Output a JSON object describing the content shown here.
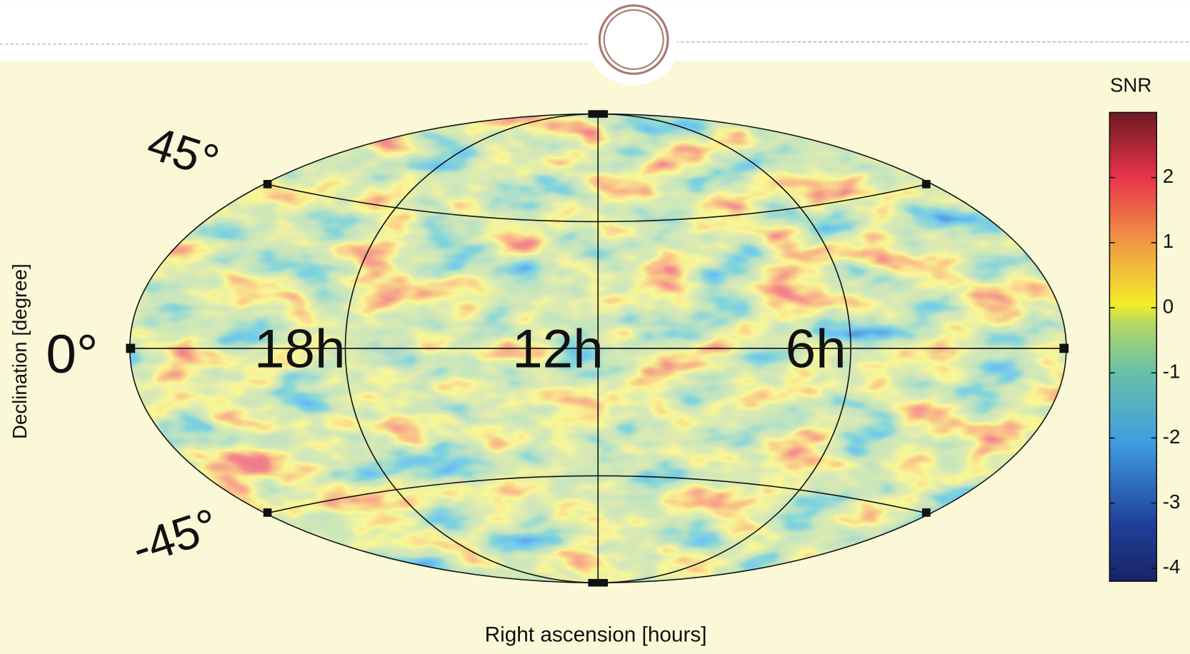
{
  "chart_data": {
    "type": "skymap",
    "x_label": "Right ascension [hours]",
    "y_label": "Declination [degree]",
    "ra_labels": [
      "18h",
      "12h",
      "6h"
    ],
    "dec_labels": [
      "45°",
      "0°",
      "-45°"
    ],
    "colorbar": {
      "label": "SNR",
      "lim": [
        -4.2,
        3
      ],
      "ticks": [
        2,
        1,
        0,
        -1,
        -2,
        -3,
        -4
      ]
    }
  }
}
